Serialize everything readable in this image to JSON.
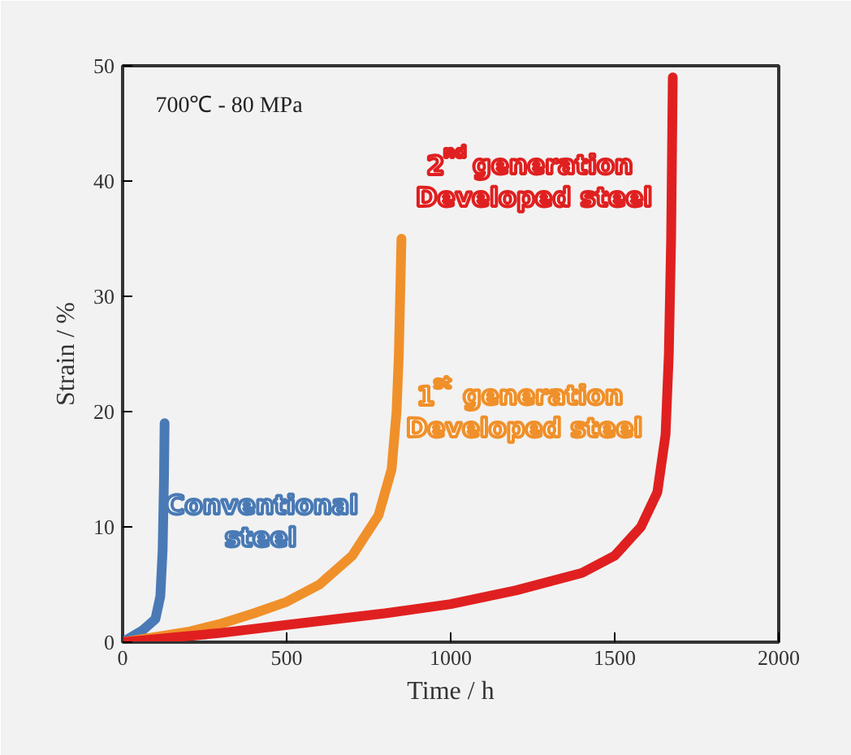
{
  "chart_data": {
    "type": "line",
    "xlabel": "Time / h",
    "ylabel": "Strain / %",
    "annotations": [
      "700℃ - 80 MPa"
    ],
    "xlim": [
      0,
      2000
    ],
    "ylim": [
      0,
      50
    ],
    "xticks": [
      0,
      500,
      1000,
      1500,
      2000
    ],
    "yticks": [
      0,
      10,
      20,
      30,
      40,
      50
    ],
    "grid": false,
    "marker": "none",
    "line_style": "solid",
    "series": [
      {
        "name": "Conventional steel",
        "color": "#4a7ab5",
        "x": [
          0,
          60,
          100,
          115,
          122,
          126,
          128
        ],
        "values": [
          0,
          1,
          2,
          4,
          8,
          14,
          19
        ]
      },
      {
        "name": "1$^{st}$ generation Developed steel",
        "color": "#f0902a",
        "x": [
          0,
          200,
          300,
          400,
          500,
          600,
          700,
          780,
          820,
          835,
          842,
          846,
          850
        ],
        "values": [
          0,
          0.9,
          1.6,
          2.5,
          3.5,
          5,
          7.5,
          11,
          15,
          20,
          25,
          30,
          35
        ]
      },
      {
        "name": "2$^{nd}$ generation Developed steel",
        "color": "#e02020",
        "x": [
          0,
          300,
          500,
          800,
          1000,
          1200,
          1400,
          1500,
          1580,
          1630,
          1655,
          1665,
          1672,
          1677
        ],
        "values": [
          0,
          0.8,
          1.5,
          2.5,
          3.3,
          4.5,
          6,
          7.5,
          10,
          13,
          18,
          25,
          35,
          49
        ]
      }
    ]
  }
}
